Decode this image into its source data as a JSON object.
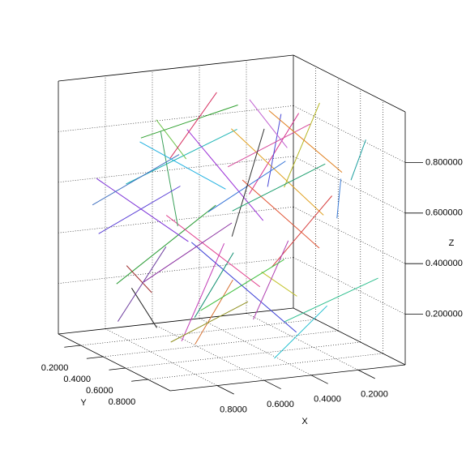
{
  "chart_data": {
    "type": "segments3d",
    "x_label": "X",
    "y_label": "Y",
    "z_label": "Z",
    "xlim": [
      0,
      1
    ],
    "ylim": [
      0,
      1
    ],
    "zlim": [
      0,
      1
    ],
    "xticks": [
      {
        "value": 0.2,
        "label": "0.2000"
      },
      {
        "value": 0.4,
        "label": "0.4000"
      },
      {
        "value": 0.6,
        "label": "0.6000"
      },
      {
        "value": 0.8,
        "label": "0.8000"
      }
    ],
    "yticks": [
      {
        "value": 0.2,
        "label": "0.2000"
      },
      {
        "value": 0.4,
        "label": "0.4000"
      },
      {
        "value": 0.6,
        "label": "0.6000"
      },
      {
        "value": 0.8,
        "label": "0.8000"
      }
    ],
    "zticks": [
      {
        "value": 0.2,
        "label": "0.200000"
      },
      {
        "value": 0.4,
        "label": "0.400000"
      },
      {
        "value": 0.6,
        "label": "0.600000"
      },
      {
        "value": 0.8,
        "label": "0.800000"
      }
    ],
    "grid": true,
    "segments": [
      {
        "start": [
          0.12,
          0.3,
          0.85
        ],
        "end": [
          0.45,
          0.55,
          0.62
        ],
        "color": "#d62f8c"
      },
      {
        "start": [
          0.8,
          0.1,
          0.2
        ],
        "end": [
          0.52,
          0.4,
          0.55
        ],
        "color": "#2f9e3a"
      },
      {
        "start": [
          0.33,
          0.72,
          0.1
        ],
        "end": [
          0.6,
          0.35,
          0.4
        ],
        "color": "#3b3fd6"
      },
      {
        "start": [
          0.95,
          0.5,
          0.7
        ],
        "end": [
          0.62,
          0.8,
          0.95
        ],
        "color": "#1fb5b5"
      },
      {
        "start": [
          0.2,
          0.15,
          0.4
        ],
        "end": [
          0.5,
          0.1,
          0.78
        ],
        "color": "#9b2fd6"
      },
      {
        "start": [
          0.55,
          0.6,
          0.9
        ],
        "end": [
          0.3,
          0.9,
          0.6
        ],
        "color": "#e0a020"
      },
      {
        "start": [
          0.7,
          0.25,
          0.05
        ],
        "end": [
          0.95,
          0.55,
          0.3
        ],
        "color": "#222222"
      },
      {
        "start": [
          0.05,
          0.45,
          0.55
        ],
        "end": [
          0.4,
          0.65,
          0.35
        ],
        "color": "#d63b3b"
      },
      {
        "start": [
          0.48,
          0.05,
          0.65
        ],
        "end": [
          0.75,
          0.35,
          0.9
        ],
        "color": "#6cc24a"
      },
      {
        "start": [
          0.88,
          0.85,
          0.15
        ],
        "end": [
          0.58,
          0.6,
          0.45
        ],
        "color": "#c23bb5"
      },
      {
        "start": [
          0.25,
          0.95,
          0.75
        ],
        "end": [
          0.1,
          0.6,
          0.5
        ],
        "color": "#3b7bd6"
      },
      {
        "start": [
          0.62,
          0.42,
          0.12
        ],
        "end": [
          0.35,
          0.2,
          0.3
        ],
        "color": "#0f8f6f"
      },
      {
        "start": [
          0.15,
          0.55,
          0.95
        ],
        "end": [
          0.42,
          0.8,
          0.7
        ],
        "color": "#b5b51f"
      },
      {
        "start": [
          0.78,
          0.7,
          0.5
        ],
        "end": [
          0.98,
          0.3,
          0.68
        ],
        "color": "#7a2fd6"
      },
      {
        "start": [
          0.4,
          0.3,
          0.22
        ],
        "end": [
          0.68,
          0.55,
          0.05
        ],
        "color": "#d6702f"
      },
      {
        "start": [
          0.02,
          0.8,
          0.3
        ],
        "end": [
          0.3,
          0.55,
          0.1
        ],
        "color": "#2fbf8f"
      },
      {
        "start": [
          0.58,
          0.92,
          0.35
        ],
        "end": [
          0.85,
          0.65,
          0.6
        ],
        "color": "#e03b8a"
      },
      {
        "start": [
          0.3,
          0.4,
          0.6
        ],
        "end": [
          0.1,
          0.1,
          0.8
        ],
        "color": "#4a4ad6"
      },
      {
        "start": [
          0.72,
          0.15,
          0.78
        ],
        "end": [
          0.45,
          0.45,
          0.95
        ],
        "color": "#30a030"
      },
      {
        "start": [
          0.9,
          0.4,
          0.35
        ],
        "end": [
          0.65,
          0.1,
          0.15
        ],
        "color": "#a03030"
      },
      {
        "start": [
          0.18,
          0.68,
          0.18
        ],
        "end": [
          0.5,
          0.88,
          0.05
        ],
        "color": "#28c0d0"
      },
      {
        "start": [
          0.5,
          0.5,
          0.5
        ],
        "end": [
          0.78,
          0.3,
          0.25
        ],
        "color": "#8a2fa0"
      },
      {
        "start": [
          0.08,
          0.2,
          0.1
        ],
        "end": [
          0.35,
          0.45,
          0.28
        ],
        "color": "#c0c020"
      },
      {
        "start": [
          0.65,
          0.78,
          0.8
        ],
        "end": [
          0.38,
          0.95,
          0.98
        ],
        "color": "#d64a9b"
      },
      {
        "start": [
          0.42,
          0.12,
          0.45
        ],
        "end": [
          0.2,
          0.35,
          0.68
        ],
        "color": "#2f6fd6"
      },
      {
        "start": [
          0.85,
          0.6,
          0.92
        ],
        "end": [
          0.92,
          0.9,
          0.62
        ],
        "color": "#3aa05a"
      },
      {
        "start": [
          0.28,
          0.82,
          0.45
        ],
        "end": [
          0.55,
          0.7,
          0.72
        ],
        "color": "#e05030"
      },
      {
        "start": [
          0.6,
          0.25,
          0.6
        ],
        "end": [
          0.9,
          0.15,
          0.42
        ],
        "color": "#5a3fd6"
      },
      {
        "start": [
          0.12,
          0.9,
          0.88
        ],
        "end": [
          0.05,
          0.62,
          0.65
        ],
        "color": "#1fa0a0"
      },
      {
        "start": [
          0.48,
          0.65,
          0.15
        ],
        "end": [
          0.25,
          0.48,
          0.4
        ],
        "color": "#b03fb0"
      },
      {
        "start": [
          0.75,
          0.48,
          0.05
        ],
        "end": [
          0.55,
          0.75,
          0.25
        ],
        "color": "#909020"
      },
      {
        "start": [
          0.35,
          0.05,
          0.9
        ],
        "end": [
          0.62,
          0.2,
          0.7
        ],
        "color": "#d63060"
      },
      {
        "start": [
          0.95,
          0.2,
          0.55
        ],
        "end": [
          0.7,
          0.45,
          0.78
        ],
        "color": "#4070c0"
      },
      {
        "start": [
          0.22,
          0.38,
          0.3
        ],
        "end": [
          0.48,
          0.18,
          0.08
        ],
        "color": "#40c040"
      },
      {
        "start": [
          0.68,
          0.88,
          0.55
        ],
        "end": [
          0.4,
          0.58,
          0.88
        ],
        "color": "#303030"
      },
      {
        "start": [
          0.05,
          0.05,
          0.65
        ],
        "end": [
          0.32,
          0.28,
          0.92
        ],
        "color": "#c05fd0"
      },
      {
        "start": [
          0.82,
          0.35,
          0.82
        ],
        "end": [
          0.55,
          0.55,
          0.65
        ],
        "color": "#20b0e0"
      },
      {
        "start": [
          0.38,
          0.58,
          0.95
        ],
        "end": [
          0.15,
          0.75,
          0.72
        ],
        "color": "#e08020"
      },
      {
        "start": [
          0.58,
          0.08,
          0.32
        ],
        "end": [
          0.88,
          0.28,
          0.1
        ],
        "color": "#7040a0"
      },
      {
        "start": [
          0.15,
          0.6,
          0.72
        ],
        "end": [
          0.45,
          0.4,
          0.52
        ],
        "color": "#20a070"
      }
    ]
  }
}
